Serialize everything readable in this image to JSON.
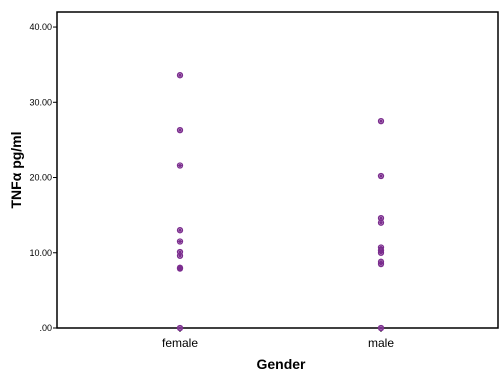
{
  "chart_data": {
    "type": "scatter",
    "xlabel": "Gender",
    "ylabel": "TNFα pg/ml",
    "categories": [
      "female",
      "male"
    ],
    "ylim": [
      0,
      42
    ],
    "yticks": [
      {
        "value": 0,
        "label": ".00"
      },
      {
        "value": 10,
        "label": "10.00"
      },
      {
        "value": 20,
        "label": "20.00"
      },
      {
        "value": 30,
        "label": "30.00"
      },
      {
        "value": 40,
        "label": "40.00"
      }
    ],
    "grid": false,
    "marker_color": "#7b2d8e",
    "series": [
      {
        "category": "female",
        "values": [
          33.6,
          26.3,
          21.6,
          13.0,
          11.5,
          10.1,
          9.6,
          8.0,
          7.9,
          0.0
        ]
      },
      {
        "category": "male",
        "values": [
          27.5,
          20.2,
          14.6,
          14.0,
          10.7,
          10.3,
          10.0,
          8.8,
          8.5,
          0.0
        ]
      }
    ]
  }
}
